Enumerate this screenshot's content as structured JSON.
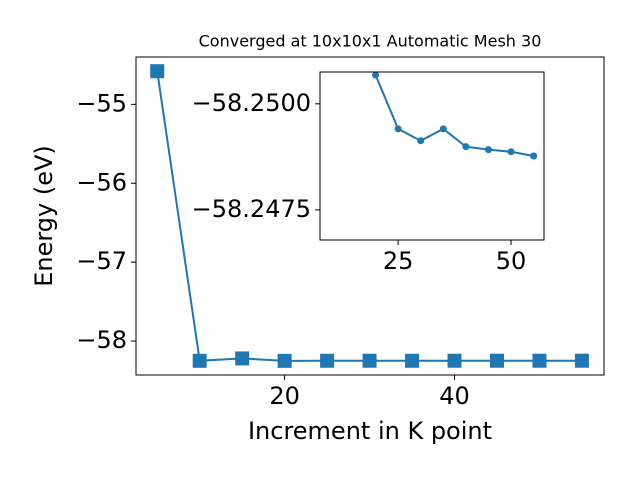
{
  "chart_data": [
    {
      "type": "line",
      "title": "Converged at 10x10x1 Automatic Mesh 30",
      "xlabel": "Increment in K point",
      "ylabel": "Energy (eV)",
      "x": [
        5,
        10,
        15,
        20,
        25,
        30,
        35,
        40,
        45,
        50,
        55
      ],
      "series": [
        {
          "color": "#1f77b4",
          "marker": "square",
          "values": [
            -54.58,
            -58.25,
            -58.22,
            -58.2507,
            -58.2494,
            -58.2491,
            -58.2494,
            -58.249,
            -58.2489,
            -58.2489,
            -58.2488
          ]
        }
      ],
      "xlim": [
        2.5,
        57.6
      ],
      "ylim": [
        -58.43,
        -54.4
      ],
      "xticks": [
        20,
        40
      ],
      "yticks": [
        {
          "value": -55,
          "label": "−55"
        },
        {
          "value": -56,
          "label": "−56"
        },
        {
          "value": -57,
          "label": "−57"
        },
        {
          "value": -58,
          "label": "−58"
        }
      ]
    },
    {
      "type": "line",
      "x": [
        20,
        25,
        30,
        35,
        40,
        45,
        50,
        55
      ],
      "series": [
        {
          "color": "#1f77b4",
          "marker": "circle",
          "values": [
            -58.25068,
            -58.24941,
            -58.24913,
            -58.24941,
            -58.24899,
            -58.24892,
            -58.24887,
            -58.24877
          ]
        }
      ],
      "xlim": [
        7.7,
        57.3
      ],
      "ylim": [
        -58.24679,
        -58.25075
      ],
      "xticks": [
        25,
        50
      ],
      "yticks": [
        {
          "value": -58.25,
          "label": "−58.2500"
        },
        {
          "value": -58.2475,
          "label": "−58.2475"
        }
      ]
    }
  ]
}
